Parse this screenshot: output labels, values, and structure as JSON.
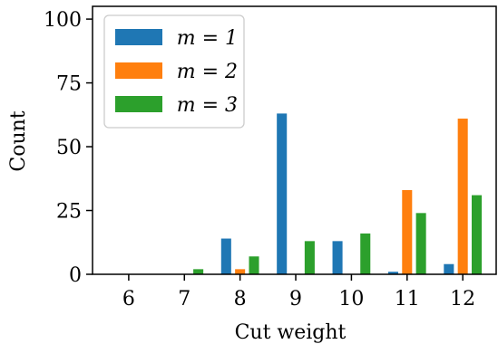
{
  "chart_data": {
    "type": "bar",
    "title": "",
    "xlabel": "Cut weight",
    "ylabel": "Count",
    "categories": [
      "6",
      "7",
      "8",
      "9",
      "10",
      "11",
      "12"
    ],
    "x": [
      6,
      7,
      8,
      9,
      10,
      11,
      12
    ],
    "ylim": [
      0,
      105
    ],
    "yticks": [
      0,
      25,
      50,
      75,
      100
    ],
    "grid": false,
    "legend_position": "top-left",
    "series": [
      {
        "name": "m = 1",
        "color": "#1f77b4",
        "values": [
          0,
          0,
          14,
          63,
          13,
          1,
          4
        ]
      },
      {
        "name": "m = 2",
        "color": "#ff7f0e",
        "values": [
          0,
          0,
          2,
          0,
          0,
          33,
          61
        ]
      },
      {
        "name": "m = 3",
        "color": "#2ca02c",
        "values": [
          0,
          2,
          7,
          13,
          16,
          24,
          31
        ]
      }
    ]
  }
}
